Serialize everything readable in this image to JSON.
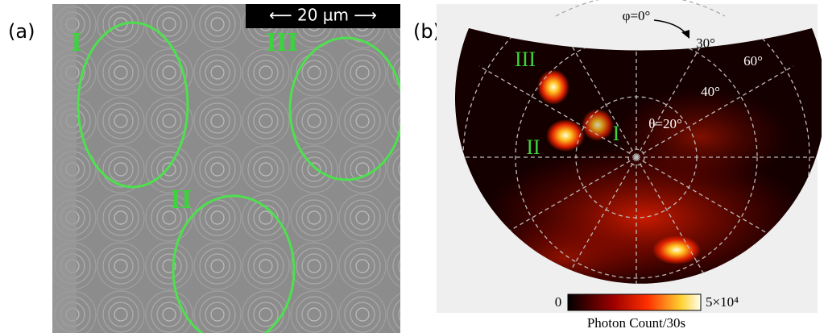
{
  "panel_a": {
    "label": "(a)",
    "scale_bar": "⟵ 20 µm ⟶",
    "regions": [
      "I",
      "II",
      "III"
    ]
  },
  "panel_b": {
    "label": "(b)",
    "regions": [
      "I",
      "II",
      "III"
    ],
    "angles": {
      "phi": "φ=0°",
      "phi30": "30°",
      "phi60": "60°",
      "theta40": "40°",
      "theta20": "θ=20°"
    },
    "colorbar": {
      "min": "0",
      "max": "5×10⁴",
      "title": "Photon Count/30s"
    }
  }
}
